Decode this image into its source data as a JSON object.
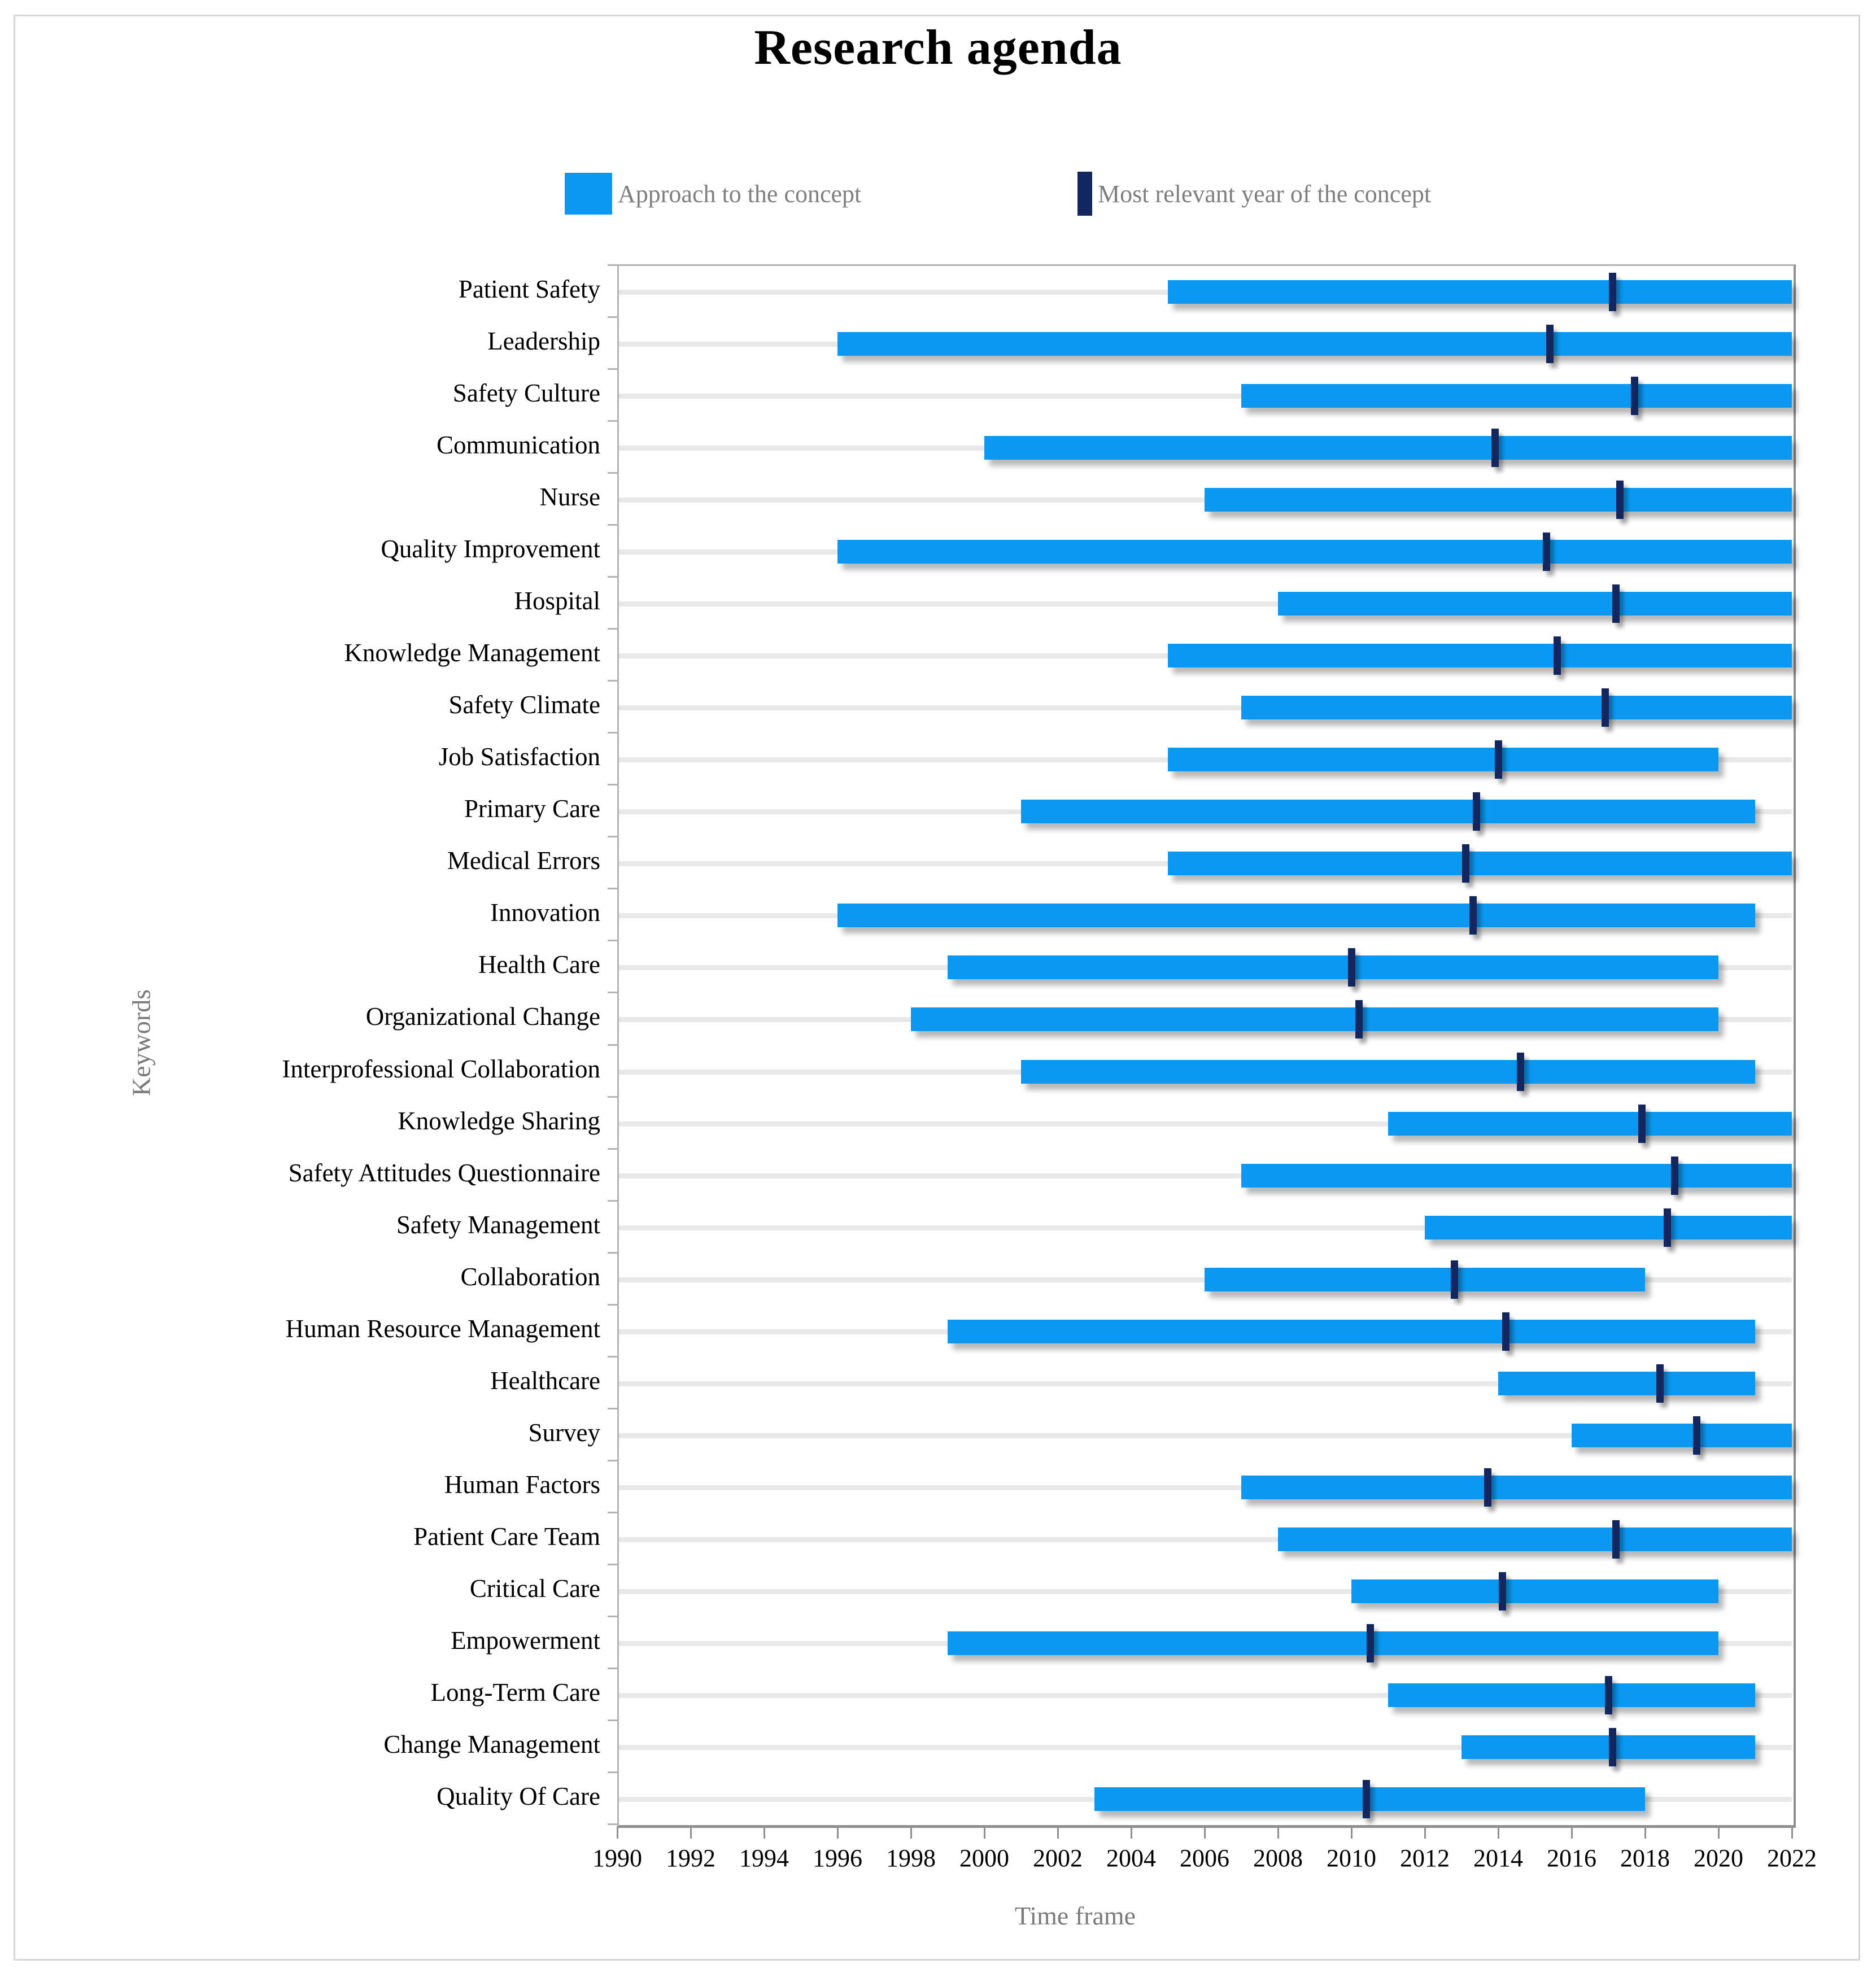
{
  "figure": {
    "title": "Research agenda",
    "xlabel": "Time frame",
    "ylabel": "Keywords",
    "legend": {
      "approach_label": "Approach to the concept",
      "peak_label": "Most relevant year of the concept"
    },
    "colors": {
      "bar": "#0a99f2",
      "marker": "#14265e",
      "gridline": "#e9e9e9",
      "axis": "#8f8f8f",
      "muted_text": "#7f7f7f",
      "text": "#000000",
      "figure_border": "#d7d7d7"
    }
  },
  "chart_data": {
    "type": "bar",
    "subtype": "horizontal-range-gantt",
    "title": "Research agenda",
    "xlabel": "Time frame",
    "ylabel": "Keywords",
    "xlim": [
      1990,
      2022
    ],
    "x_ticks": [
      1990,
      1992,
      1994,
      1996,
      1998,
      2000,
      2002,
      2004,
      2006,
      2008,
      2010,
      2012,
      2014,
      2016,
      2018,
      2020,
      2022
    ],
    "grid": "horizontal-row-lines",
    "legend_position": "top",
    "legend": [
      "Approach to the concept",
      "Most relevant year of the concept"
    ],
    "rows": [
      {
        "keyword": "Patient Safety",
        "start": 2005,
        "end": 2022,
        "peak": 2017.1
      },
      {
        "keyword": "Leadership",
        "start": 1996,
        "end": 2022,
        "peak": 2015.4
      },
      {
        "keyword": "Safety Culture",
        "start": 2007,
        "end": 2022,
        "peak": 2017.7
      },
      {
        "keyword": "Communication",
        "start": 2000,
        "end": 2022,
        "peak": 2013.9
      },
      {
        "keyword": "Nurse",
        "start": 2006,
        "end": 2022,
        "peak": 2017.3
      },
      {
        "keyword": "Quality Improvement",
        "start": 1996,
        "end": 2022,
        "peak": 2015.3
      },
      {
        "keyword": "Hospital",
        "start": 2008,
        "end": 2022,
        "peak": 2017.2
      },
      {
        "keyword": "Knowledge Management",
        "start": 2005,
        "end": 2022,
        "peak": 2015.6
      },
      {
        "keyword": "Safety Climate",
        "start": 2007,
        "end": 2022,
        "peak": 2016.9
      },
      {
        "keyword": "Job Satisfaction",
        "start": 2005,
        "end": 2020,
        "peak": 2014.0
      },
      {
        "keyword": "Primary Care",
        "start": 2001,
        "end": 2021,
        "peak": 2013.4
      },
      {
        "keyword": "Medical Errors",
        "start": 2005,
        "end": 2022,
        "peak": 2013.1
      },
      {
        "keyword": "Innovation",
        "start": 1996,
        "end": 2021,
        "peak": 2013.3
      },
      {
        "keyword": "Health Care",
        "start": 1999,
        "end": 2020,
        "peak": 2010.0
      },
      {
        "keyword": "Organizational Change",
        "start": 1998,
        "end": 2020,
        "peak": 2010.2
      },
      {
        "keyword": "Interprofessional Collaboration",
        "start": 2001,
        "end": 2021,
        "peak": 2014.6
      },
      {
        "keyword": "Knowledge Sharing",
        "start": 2011,
        "end": 2022,
        "peak": 2017.9
      },
      {
        "keyword": "Safety Attitudes Questionnaire",
        "start": 2007,
        "end": 2022,
        "peak": 2018.8
      },
      {
        "keyword": "Safety Management",
        "start": 2012,
        "end": 2022,
        "peak": 2018.6
      },
      {
        "keyword": "Collaboration",
        "start": 2006,
        "end": 2018,
        "peak": 2012.8
      },
      {
        "keyword": "Human Resource Management",
        "start": 1999,
        "end": 2021,
        "peak": 2014.2
      },
      {
        "keyword": "Healthcare",
        "start": 2014,
        "end": 2021,
        "peak": 2018.4
      },
      {
        "keyword": "Survey",
        "start": 2016,
        "end": 2022,
        "peak": 2019.4
      },
      {
        "keyword": "Human Factors",
        "start": 2007,
        "end": 2022,
        "peak": 2013.7
      },
      {
        "keyword": "Patient Care Team",
        "start": 2008,
        "end": 2022,
        "peak": 2017.2
      },
      {
        "keyword": "Critical Care",
        "start": 2010,
        "end": 2020,
        "peak": 2014.1
      },
      {
        "keyword": "Empowerment",
        "start": 1999,
        "end": 2020,
        "peak": 2010.5
      },
      {
        "keyword": "Long-Term Care",
        "start": 2011,
        "end": 2021,
        "peak": 2017.0
      },
      {
        "keyword": "Change Management",
        "start": 2013,
        "end": 2021,
        "peak": 2017.1
      },
      {
        "keyword": "Quality Of Care",
        "start": 2003,
        "end": 2018,
        "peak": 2010.4
      }
    ]
  }
}
